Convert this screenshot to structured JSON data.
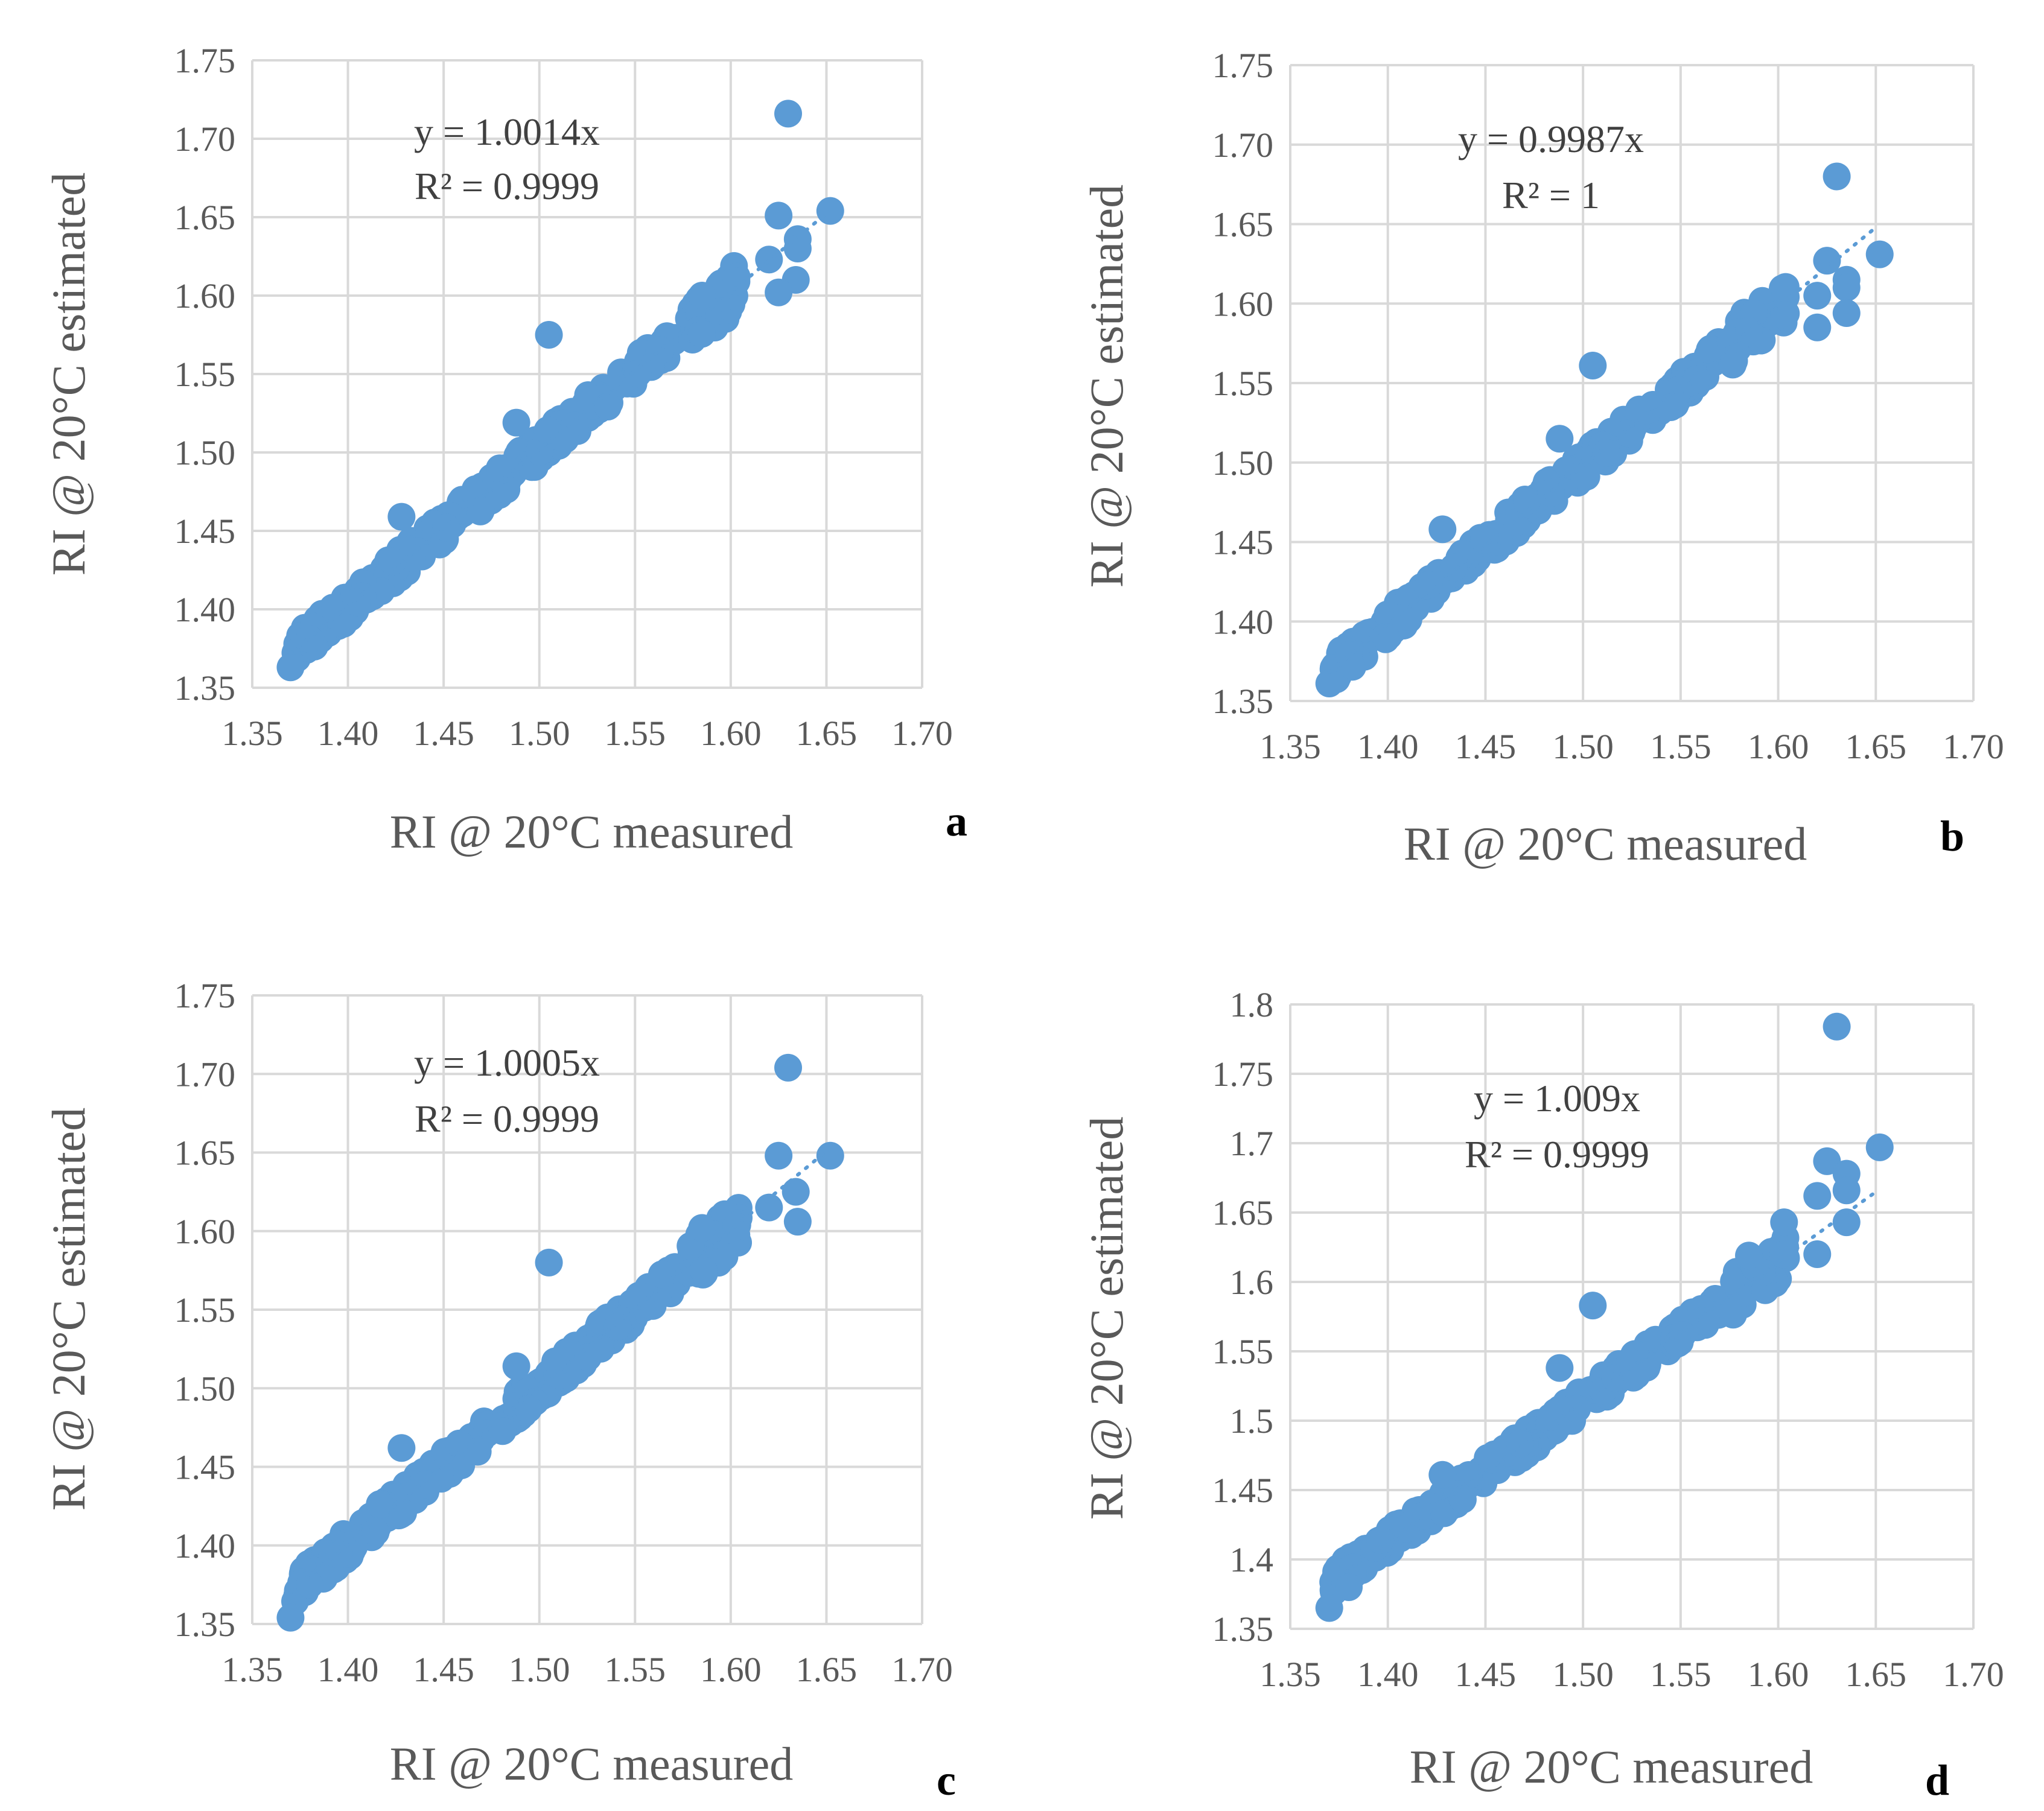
{
  "figure": {
    "description_panels": [
      "a",
      "b",
      "c",
      "d"
    ]
  },
  "colors": {
    "marker": "#5b9bd5",
    "trendline": "#5b9bd5",
    "grid": "#d9d9d9",
    "text": "#595959"
  },
  "chart_data": [
    {
      "type": "scatter",
      "panel_label": "a",
      "xlabel": "RI @ 20°C measured",
      "ylabel": "RI @ 20°C estimated",
      "xlim": [
        1.35,
        1.7
      ],
      "ylim": [
        1.35,
        1.75
      ],
      "x_ticks": [
        "1.35",
        "1.40",
        "1.45",
        "1.50",
        "1.55",
        "1.60",
        "1.65",
        "1.70"
      ],
      "y_ticks": [
        "1.35",
        "1.40",
        "1.45",
        "1.50",
        "1.55",
        "1.60",
        "1.65",
        "1.70",
        "1.75"
      ],
      "equation": "y = 1.0014x",
      "r_squared": "R² = 0.9999",
      "slope": 1.0014,
      "trend_x_range": [
        1.37,
        1.65
      ],
      "outliers": [
        [
          1.63,
          1.716
        ],
        [
          1.652,
          1.654
        ],
        [
          1.625,
          1.651
        ],
        [
          1.635,
          1.636
        ],
        [
          1.635,
          1.63
        ],
        [
          1.62,
          1.623
        ],
        [
          1.634,
          1.61
        ],
        [
          1.625,
          1.602
        ],
        [
          1.505,
          1.575
        ],
        [
          1.428,
          1.459
        ],
        [
          1.488,
          1.519
        ],
        [
          1.585,
          1.6
        ],
        [
          1.603,
          1.609
        ],
        [
          1.37,
          1.363
        ],
        [
          1.38,
          1.381
        ]
      ]
    },
    {
      "type": "scatter",
      "panel_label": "b",
      "xlabel": "RI @ 20°C measured",
      "ylabel": "RI @ 20°C estimated",
      "xlim": [
        1.35,
        1.7
      ],
      "ylim": [
        1.35,
        1.75
      ],
      "x_ticks": [
        "1.35",
        "1.40",
        "1.45",
        "1.50",
        "1.55",
        "1.60",
        "1.65",
        "1.70"
      ],
      "y_ticks": [
        "1.35",
        "1.40",
        "1.45",
        "1.50",
        "1.55",
        "1.60",
        "1.65",
        "1.70",
        "1.75"
      ],
      "equation": "y = 0.9987x",
      "r_squared": "R² = 1",
      "slope": 0.9987,
      "trend_x_range": [
        1.37,
        1.65
      ],
      "outliers": [
        [
          1.63,
          1.68
        ],
        [
          1.652,
          1.631
        ],
        [
          1.625,
          1.627
        ],
        [
          1.635,
          1.615
        ],
        [
          1.635,
          1.61
        ],
        [
          1.62,
          1.605
        ],
        [
          1.635,
          1.594
        ],
        [
          1.62,
          1.585
        ],
        [
          1.505,
          1.561
        ],
        [
          1.428,
          1.458
        ],
        [
          1.488,
          1.515
        ],
        [
          1.585,
          1.583
        ],
        [
          1.603,
          1.593
        ],
        [
          1.37,
          1.361
        ],
        [
          1.38,
          1.379
        ]
      ]
    },
    {
      "type": "scatter",
      "panel_label": "c",
      "xlabel": "RI @ 20°C measured",
      "ylabel": "RI @ 20°C estimated",
      "xlim": [
        1.35,
        1.7
      ],
      "ylim": [
        1.35,
        1.75
      ],
      "x_ticks": [
        "1.35",
        "1.40",
        "1.45",
        "1.50",
        "1.55",
        "1.60",
        "1.65",
        "1.70"
      ],
      "y_ticks": [
        "1.35",
        "1.40",
        "1.45",
        "1.50",
        "1.55",
        "1.60",
        "1.65",
        "1.70",
        "1.75"
      ],
      "equation": "y = 1.0005x",
      "r_squared": "R² = 0.9999",
      "slope": 1.0005,
      "trend_x_range": [
        1.37,
        1.65
      ],
      "outliers": [
        [
          1.63,
          1.704
        ],
        [
          1.652,
          1.648
        ],
        [
          1.625,
          1.648
        ],
        [
          1.634,
          1.625
        ],
        [
          1.62,
          1.615
        ],
        [
          1.635,
          1.606
        ],
        [
          1.505,
          1.58
        ],
        [
          1.428,
          1.462
        ],
        [
          1.488,
          1.514
        ],
        [
          1.585,
          1.602
        ],
        [
          1.603,
          1.603
        ],
        [
          1.37,
          1.354
        ],
        [
          1.38,
          1.375
        ]
      ]
    },
    {
      "type": "scatter",
      "panel_label": "d",
      "xlabel": "RI @ 20°C measured",
      "ylabel": "RI @ 20°C estimated",
      "xlim": [
        1.35,
        1.7
      ],
      "ylim": [
        1.35,
        1.8
      ],
      "x_ticks": [
        "1.35",
        "1.40",
        "1.45",
        "1.50",
        "1.55",
        "1.60",
        "1.65",
        "1.70"
      ],
      "y_ticks": [
        "1.35",
        "1.4",
        "1.45",
        "1.5",
        "1.55",
        "1.6",
        "1.65",
        "1.7",
        "1.75",
        "1.8"
      ],
      "equation": "y = 1.009x",
      "r_squared": "R² = 0.9999",
      "slope": 1.009,
      "trend_x_range": [
        1.37,
        1.65
      ],
      "outliers": [
        [
          1.63,
          1.784
        ],
        [
          1.652,
          1.697
        ],
        [
          1.625,
          1.687
        ],
        [
          1.635,
          1.678
        ],
        [
          1.635,
          1.666
        ],
        [
          1.62,
          1.662
        ],
        [
          1.635,
          1.643
        ],
        [
          1.603,
          1.643
        ],
        [
          1.62,
          1.62
        ],
        [
          1.505,
          1.583
        ],
        [
          1.428,
          1.461
        ],
        [
          1.488,
          1.538
        ],
        [
          1.585,
          1.619
        ],
        [
          1.37,
          1.365
        ],
        [
          1.38,
          1.38
        ]
      ]
    }
  ]
}
